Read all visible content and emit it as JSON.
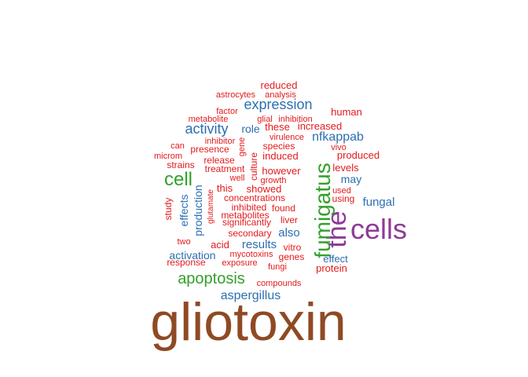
{
  "wordcloud": {
    "colors": {
      "red": "#e31a1c",
      "blue": "#2c6fb0",
      "green": "#33a02c",
      "purple": "#8e3a99",
      "brown": "#8f4a23"
    },
    "words": [
      {
        "text": "gliotoxin",
        "tier": "brown"
      },
      {
        "text": "cells",
        "tier": "purple"
      },
      {
        "text": "the",
        "tier": "purple"
      },
      {
        "text": "fumigatus",
        "tier": "green"
      },
      {
        "text": "cell",
        "tier": "green"
      },
      {
        "text": "apoptosis",
        "tier": "green"
      },
      {
        "text": "expression",
        "tier": "blue"
      },
      {
        "text": "activity",
        "tier": "blue"
      },
      {
        "text": "aspergillus",
        "tier": "blue"
      },
      {
        "text": "nfkappab",
        "tier": "blue"
      },
      {
        "text": "fungal",
        "tier": "blue"
      },
      {
        "text": "also",
        "tier": "blue"
      },
      {
        "text": "results",
        "tier": "blue"
      },
      {
        "text": "activation",
        "tier": "blue"
      },
      {
        "text": "effect",
        "tier": "blue"
      },
      {
        "text": "production",
        "tier": "blue"
      },
      {
        "text": "effects",
        "tier": "blue"
      },
      {
        "text": "may",
        "tier": "blue"
      },
      {
        "text": "role",
        "tier": "blue"
      },
      {
        "text": "reduced",
        "tier": "red"
      },
      {
        "text": "astrocytes",
        "tier": "red"
      },
      {
        "text": "analysis",
        "tier": "red"
      },
      {
        "text": "human",
        "tier": "red"
      },
      {
        "text": "factor",
        "tier": "red"
      },
      {
        "text": "metabolite",
        "tier": "red"
      },
      {
        "text": "glial",
        "tier": "red"
      },
      {
        "text": "inhibition",
        "tier": "red"
      },
      {
        "text": "these",
        "tier": "red"
      },
      {
        "text": "increased",
        "tier": "red"
      },
      {
        "text": "virulence",
        "tier": "red"
      },
      {
        "text": "inhibitor",
        "tier": "red"
      },
      {
        "text": "gene",
        "tier": "red"
      },
      {
        "text": "can",
        "tier": "red"
      },
      {
        "text": "presence",
        "tier": "red"
      },
      {
        "text": "species",
        "tier": "red"
      },
      {
        "text": "vivo",
        "tier": "red"
      },
      {
        "text": "microm",
        "tier": "red"
      },
      {
        "text": "release",
        "tier": "red"
      },
      {
        "text": "induced",
        "tier": "red"
      },
      {
        "text": "produced",
        "tier": "red"
      },
      {
        "text": "strains",
        "tier": "red"
      },
      {
        "text": "treatment",
        "tier": "red"
      },
      {
        "text": "culture",
        "tier": "red"
      },
      {
        "text": "however",
        "tier": "red"
      },
      {
        "text": "levels",
        "tier": "red"
      },
      {
        "text": "well",
        "tier": "red"
      },
      {
        "text": "growth",
        "tier": "red"
      },
      {
        "text": "this",
        "tier": "red"
      },
      {
        "text": "showed",
        "tier": "red"
      },
      {
        "text": "used",
        "tier": "red"
      },
      {
        "text": "using",
        "tier": "red"
      },
      {
        "text": "concentrations",
        "tier": "red"
      },
      {
        "text": "study",
        "tier": "red"
      },
      {
        "text": "glutamate",
        "tier": "red"
      },
      {
        "text": "inhibited",
        "tier": "red"
      },
      {
        "text": "found",
        "tier": "red"
      },
      {
        "text": "metabolites",
        "tier": "red"
      },
      {
        "text": "significantly",
        "tier": "red"
      },
      {
        "text": "liver",
        "tier": "red"
      },
      {
        "text": "two",
        "tier": "red"
      },
      {
        "text": "secondary",
        "tier": "red"
      },
      {
        "text": "acid",
        "tier": "red"
      },
      {
        "text": "vitro",
        "tier": "red"
      },
      {
        "text": "mycotoxins",
        "tier": "red"
      },
      {
        "text": "genes",
        "tier": "red"
      },
      {
        "text": "response",
        "tier": "red"
      },
      {
        "text": "exposure",
        "tier": "red"
      },
      {
        "text": "fungi",
        "tier": "red"
      },
      {
        "text": "protein",
        "tier": "red"
      },
      {
        "text": "compounds",
        "tier": "red"
      }
    ]
  }
}
